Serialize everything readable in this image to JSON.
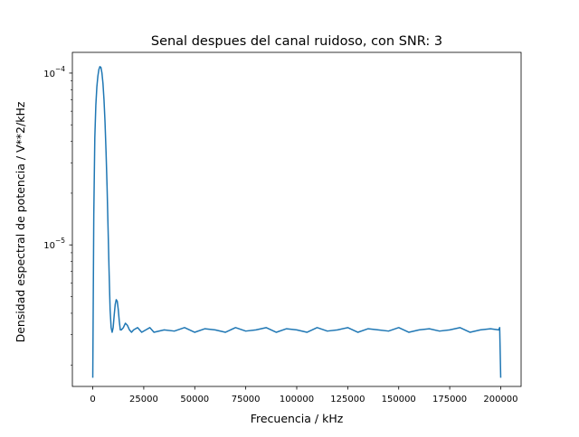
{
  "chart_data": {
    "type": "line",
    "title": "Senal despues del canal ruidoso, con SNR: 3",
    "xlabel": "Frecuencia / kHz",
    "ylabel": "Densidad espectral de potencia / V**2/kHz",
    "xlim": [
      -10000,
      210000
    ],
    "ylim": [
      1.5e-06,
      0.000132
    ],
    "yscale": "log",
    "grid": false,
    "legend": "none",
    "series_color": "#1f77b4",
    "x_ticks": [
      0,
      25000,
      50000,
      75000,
      100000,
      125000,
      150000,
      175000,
      200000
    ],
    "x_tick_labels": [
      "0",
      "25000",
      "50000",
      "75000",
      "100000",
      "125000",
      "150000",
      "175000",
      "200000"
    ],
    "y_ticks": [
      0.0001,
      1e-05
    ],
    "y_tick_labels": [
      {
        "base": "10",
        "exp": "−4"
      },
      {
        "base": "10",
        "exp": "−5"
      }
    ],
    "series": [
      {
        "x": [
          0,
          500,
          1000,
          1500,
          2000,
          2500,
          3000,
          3500,
          4000,
          4500,
          5000,
          5500,
          6000,
          6500,
          7000,
          7500,
          8000,
          8500,
          9000,
          9500,
          10000,
          10500,
          11000,
          11500,
          12000,
          12500,
          13000,
          13500,
          14000,
          15000,
          16000,
          17000,
          18000,
          19000,
          20000,
          22000,
          24000,
          26000,
          28000,
          30000,
          35000,
          40000,
          45000,
          50000,
          55000,
          60000,
          65000,
          70000,
          75000,
          80000,
          85000,
          90000,
          95000,
          100000,
          105000,
          110000,
          115000,
          120000,
          125000,
          130000,
          135000,
          140000,
          145000,
          150000,
          155000,
          160000,
          165000,
          170000,
          175000,
          180000,
          185000,
          190000,
          195000,
          199000,
          199500,
          200000
        ],
        "y": [
          1.7e-06,
          1.5e-05,
          4.2e-05,
          6.5e-05,
          8.3e-05,
          9.6e-05,
          0.000105,
          0.000109,
          0.000108,
          0.0001,
          8.7e-05,
          7e-05,
          5.2e-05,
          3.5e-05,
          2.2e-05,
          1.25e-05,
          7e-06,
          4.2e-06,
          3.3e-06,
          3.1e-06,
          3.3e-06,
          3.9e-06,
          4.5e-06,
          4.8e-06,
          4.7e-06,
          4.2e-06,
          3.6e-06,
          3.2e-06,
          3.2e-06,
          3.3e-06,
          3.5e-06,
          3.4e-06,
          3.2e-06,
          3.1e-06,
          3.2e-06,
          3.3e-06,
          3.1e-06,
          3.2e-06,
          3.3e-06,
          3.1e-06,
          3.2e-06,
          3.15e-06,
          3.3e-06,
          3.1e-06,
          3.25e-06,
          3.2e-06,
          3.1e-06,
          3.3e-06,
          3.15e-06,
          3.2e-06,
          3.3e-06,
          3.1e-06,
          3.25e-06,
          3.2e-06,
          3.1e-06,
          3.3e-06,
          3.15e-06,
          3.2e-06,
          3.3e-06,
          3.1e-06,
          3.25e-06,
          3.2e-06,
          3.15e-06,
          3.3e-06,
          3.1e-06,
          3.2e-06,
          3.25e-06,
          3.15e-06,
          3.2e-06,
          3.3e-06,
          3.1e-06,
          3.2e-06,
          3.25e-06,
          3.2e-06,
          3.3e-06,
          1.7e-06
        ]
      }
    ]
  }
}
